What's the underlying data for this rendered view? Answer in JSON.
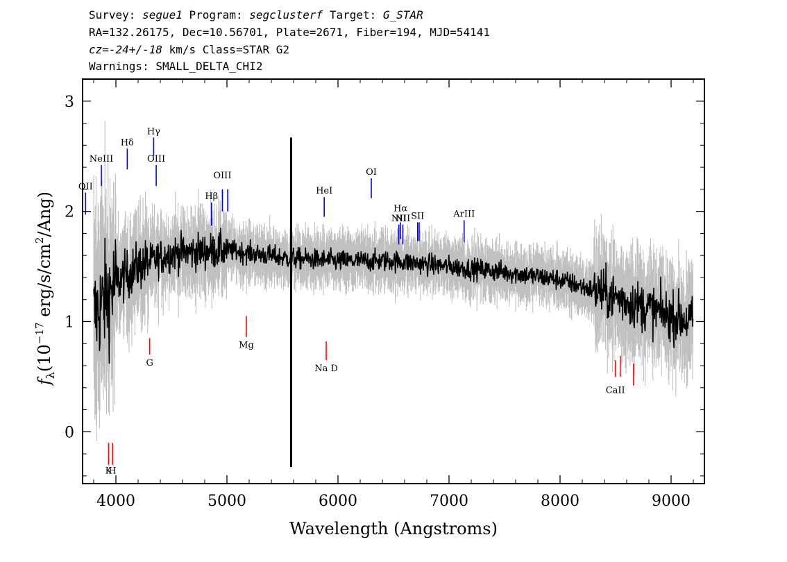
{
  "header": {
    "survey_label": "Survey:",
    "survey_value": "segue1",
    "program_label": "Program:",
    "program_value": "segclusterf",
    "target_label": "Target:",
    "target_value": "G_STAR",
    "line2": "RA=132.26175, Dec=10.56701, Plate=2671, Fiber=194, MJD=54141",
    "cz_label": "cz=",
    "cz_value": "-24+/-18",
    "cz_rest": "km/s Class=STAR G2",
    "warnings": "Warnings: SMALL_DELTA_CHI2"
  },
  "chart_data": {
    "type": "line",
    "xlabel": "Wavelength (Angstroms)",
    "ylabel_parts": {
      "f": "f",
      "sub": "λ",
      "open": "(10",
      "exp1": "−17",
      "mid": " erg/s/cm",
      "exp2": "2",
      "close": "/Ang)"
    },
    "xlim": [
      3700,
      9300
    ],
    "ylim": [
      -0.47,
      3.2
    ],
    "x_ticks": [
      4000,
      5000,
      6000,
      7000,
      8000,
      9000
    ],
    "y_ticks": [
      0,
      1,
      2,
      3
    ],
    "x_tick_labels": [
      "4000",
      "5000",
      "6000",
      "7000",
      "8000",
      "9000"
    ],
    "y_tick_labels": [
      "0",
      "1",
      "2",
      "3"
    ],
    "grid": false,
    "legend": "none",
    "colors": {
      "flux": "#000000",
      "error_band": "#c0c0c0",
      "emission": "#0000ff",
      "absorption": "#ff0000"
    },
    "sky_line": {
      "x": 5578,
      "y_top": 2.67,
      "y_bottom": -0.32
    },
    "continuum_profile": [
      {
        "x": 3800,
        "y": 1.05
      },
      {
        "x": 3900,
        "y": 1.2
      },
      {
        "x": 4000,
        "y": 1.35
      },
      {
        "x": 4200,
        "y": 1.5
      },
      {
        "x": 4500,
        "y": 1.62
      },
      {
        "x": 5000,
        "y": 1.65
      },
      {
        "x": 5500,
        "y": 1.58
      },
      {
        "x": 6000,
        "y": 1.55
      },
      {
        "x": 6500,
        "y": 1.55
      },
      {
        "x": 7000,
        "y": 1.5
      },
      {
        "x": 7500,
        "y": 1.45
      },
      {
        "x": 8000,
        "y": 1.38
      },
      {
        "x": 8500,
        "y": 1.22
      },
      {
        "x": 9000,
        "y": 1.05
      },
      {
        "x": 9200,
        "y": 1.0
      }
    ],
    "emission_lines": [
      {
        "name": "OII",
        "x": 3727,
        "y1": 1.97,
        "y2": 2.17,
        "label_y": 2.2
      },
      {
        "name": "NeIII",
        "x": 3869,
        "y1": 2.23,
        "y2": 2.42,
        "label_y": 2.45
      },
      {
        "name": "Hδ",
        "x": 4102,
        "y1": 2.38,
        "y2": 2.57,
        "label_y": 2.6
      },
      {
        "name": "Hγ",
        "x": 4340,
        "y1": 2.5,
        "y2": 2.67,
        "label_y": 2.7
      },
      {
        "name": "OIII",
        "x": 4363,
        "y1": 2.23,
        "y2": 2.42,
        "label_y": 2.45
      },
      {
        "name": "Hβ",
        "x": 4861,
        "y1": 1.87,
        "y2": 2.08,
        "label_y": 2.11
      },
      {
        "name": "OIII",
        "x": 4959,
        "y1": 2.0,
        "y2": 2.2,
        "label_y": 2.3
      },
      {
        "name": "",
        "x": 5007,
        "y1": 2.0,
        "y2": 2.2,
        "label_y": 2.3
      },
      {
        "name": "HeI",
        "x": 5876,
        "y1": 1.95,
        "y2": 2.13,
        "label_y": 2.16
      },
      {
        "name": "OI",
        "x": 6300,
        "y1": 2.12,
        "y2": 2.3,
        "label_y": 2.33
      },
      {
        "name": "NII",
        "x": 6548,
        "y1": 1.7,
        "y2": 1.88,
        "label_y": 1.91
      },
      {
        "name": "Hα",
        "x": 6563,
        "y1": 1.75,
        "y2": 1.9,
        "label_y": 2.0
      },
      {
        "name": "NII",
        "x": 6584,
        "y1": 1.7,
        "y2": 1.88,
        "label_y": 1.91
      },
      {
        "name": "SII",
        "x": 6717,
        "y1": 1.73,
        "y2": 1.9,
        "label_y": 1.93
      },
      {
        "name": "",
        "x": 6731,
        "y1": 1.73,
        "y2": 1.9,
        "label_y": 1.93
      },
      {
        "name": "ArIII",
        "x": 7136,
        "y1": 1.72,
        "y2": 1.92,
        "label_y": 1.95
      }
    ],
    "absorption_lines": [
      {
        "name": "K",
        "x": 3934,
        "y1": -0.3,
        "y2": -0.1,
        "label_y": -0.38
      },
      {
        "name": "H",
        "x": 3969,
        "y1": -0.3,
        "y2": -0.1,
        "label_y": -0.38
      },
      {
        "name": "G",
        "x": 4304,
        "y1": 0.7,
        "y2": 0.85,
        "label_y": 0.6
      },
      {
        "name": "Mg",
        "x": 5175,
        "y1": 0.86,
        "y2": 1.05,
        "label_y": 0.76
      },
      {
        "name": "Na D",
        "x": 5894,
        "y1": 0.65,
        "y2": 0.82,
        "label_y": 0.55
      },
      {
        "name": "CaII",
        "x": 8498,
        "y1": 0.5,
        "y2": 0.65,
        "label_y": 0.35
      },
      {
        "name": "",
        "x": 8542,
        "y1": 0.5,
        "y2": 0.69,
        "label_y": 0.35
      },
      {
        "name": "",
        "x": 8662,
        "y1": 0.42,
        "y2": 0.62,
        "label_y": 0.35
      }
    ]
  }
}
